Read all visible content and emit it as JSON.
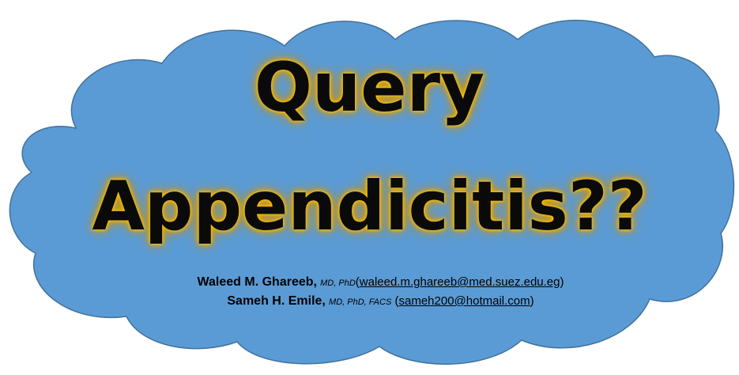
{
  "title": {
    "line1": "Query",
    "line2": "Appendicitis??"
  },
  "authors": [
    {
      "name": "Waleed M. Ghareeb,",
      "credentials": "MD, PhD",
      "email_open": "(",
      "email": "waleed.m.ghareeb@med.suez.edu.eg",
      "email_close": ")"
    },
    {
      "name": "Sameh H. Emile,",
      "credentials": "MD, PhD, FACS",
      "email_open": "(",
      "email": "sameh200@hotmail.com",
      "email_close": ")"
    }
  ],
  "colors": {
    "cloud_fill": "#5b9bd5",
    "cloud_stroke": "#41719c",
    "title_text": "#0a0a0a",
    "title_glow": "#f5b400"
  }
}
